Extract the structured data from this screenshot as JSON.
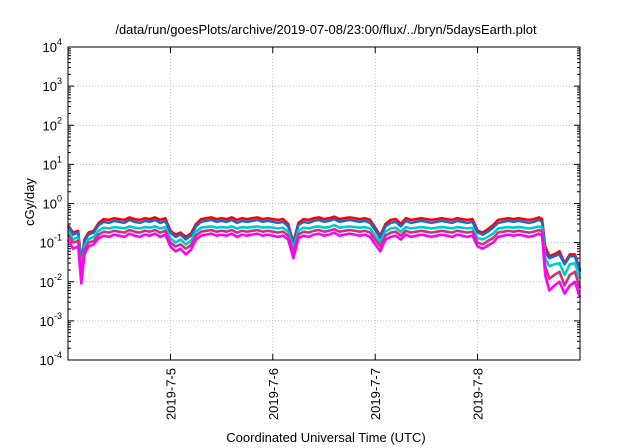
{
  "chart_data": {
    "type": "line",
    "title": "/data/run/goesPlots/archive/2019-07-08/23:00/flux/../bryn/5daysEarth.plot",
    "xlabel": "Coordinated Universal Time (UTC)",
    "ylabel": "cGy/day",
    "yscale": "log",
    "ylim": [
      0.0001,
      10000
    ],
    "xlim": [
      4.0,
      9.0
    ],
    "grid": true,
    "x_unit": "days of 2019-07 (fractional)",
    "x_ticks": [
      {
        "value": 5,
        "label": "2019-7-5"
      },
      {
        "value": 6,
        "label": "2019-7-6"
      },
      {
        "value": 7,
        "label": "2019-7-7"
      },
      {
        "value": 8,
        "label": "2019-7-8"
      }
    ],
    "y_ticks": [
      {
        "value": 0.0001,
        "base": "10",
        "exp": "-4"
      },
      {
        "value": 0.001,
        "base": "10",
        "exp": "-3"
      },
      {
        "value": 0.01,
        "base": "10",
        "exp": "-2"
      },
      {
        "value": 0.1,
        "base": "10",
        "exp": "-1"
      },
      {
        "value": 1,
        "base": "10",
        "exp": "0"
      },
      {
        "value": 10,
        "base": "10",
        "exp": "1"
      },
      {
        "value": 100,
        "base": "10",
        "exp": "2"
      },
      {
        "value": 1000,
        "base": "10",
        "exp": "3"
      },
      {
        "value": 10000,
        "base": "10",
        "exp": "4"
      }
    ],
    "x": [
      4.0,
      4.05,
      4.1,
      4.13,
      4.16,
      4.2,
      4.25,
      4.3,
      4.35,
      4.4,
      4.45,
      4.5,
      4.55,
      4.6,
      4.65,
      4.7,
      4.75,
      4.8,
      4.85,
      4.9,
      4.95,
      5.0,
      5.05,
      5.1,
      5.15,
      5.2,
      5.25,
      5.3,
      5.35,
      5.4,
      5.45,
      5.5,
      5.55,
      5.6,
      5.65,
      5.7,
      5.75,
      5.8,
      5.85,
      5.9,
      5.95,
      6.0,
      6.05,
      6.1,
      6.15,
      6.2,
      6.25,
      6.3,
      6.35,
      6.4,
      6.45,
      6.5,
      6.55,
      6.6,
      6.65,
      6.7,
      6.75,
      6.8,
      6.85,
      6.9,
      6.95,
      7.0,
      7.05,
      7.1,
      7.15,
      7.2,
      7.25,
      7.3,
      7.35,
      7.4,
      7.45,
      7.5,
      7.55,
      7.6,
      7.65,
      7.7,
      7.75,
      7.8,
      7.85,
      7.9,
      7.95,
      8.0,
      8.05,
      8.1,
      8.15,
      8.2,
      8.25,
      8.3,
      8.35,
      8.4,
      8.45,
      8.5,
      8.55,
      8.6,
      8.63,
      8.66,
      8.7,
      8.75,
      8.8,
      8.85,
      8.9,
      8.95,
      9.0
    ],
    "series": [
      {
        "color": "#ff0000",
        "values": [
          0.28,
          0.18,
          0.2,
          0.03,
          0.12,
          0.18,
          0.2,
          0.32,
          0.4,
          0.38,
          0.42,
          0.4,
          0.38,
          0.44,
          0.4,
          0.38,
          0.42,
          0.4,
          0.44,
          0.38,
          0.42,
          0.2,
          0.16,
          0.18,
          0.14,
          0.17,
          0.3,
          0.4,
          0.42,
          0.44,
          0.4,
          0.42,
          0.4,
          0.44,
          0.38,
          0.42,
          0.4,
          0.42,
          0.44,
          0.4,
          0.42,
          0.4,
          0.38,
          0.4,
          0.3,
          0.1,
          0.32,
          0.4,
          0.38,
          0.42,
          0.44,
          0.4,
          0.42,
          0.46,
          0.4,
          0.42,
          0.44,
          0.42,
          0.4,
          0.42,
          0.38,
          0.24,
          0.15,
          0.3,
          0.38,
          0.4,
          0.3,
          0.42,
          0.38,
          0.4,
          0.42,
          0.4,
          0.38,
          0.4,
          0.42,
          0.4,
          0.38,
          0.42,
          0.4,
          0.38,
          0.4,
          0.2,
          0.18,
          0.22,
          0.28,
          0.38,
          0.4,
          0.42,
          0.4,
          0.42,
          0.4,
          0.38,
          0.4,
          0.44,
          0.4,
          0.08,
          0.045,
          0.05,
          0.06,
          0.03,
          0.05,
          0.05,
          0.02
        ]
      },
      {
        "color": "#2266cc",
        "values": [
          0.26,
          0.16,
          0.18,
          0.03,
          0.11,
          0.16,
          0.18,
          0.28,
          0.34,
          0.32,
          0.36,
          0.34,
          0.32,
          0.38,
          0.34,
          0.32,
          0.36,
          0.34,
          0.38,
          0.32,
          0.36,
          0.18,
          0.14,
          0.16,
          0.12,
          0.15,
          0.26,
          0.34,
          0.36,
          0.38,
          0.34,
          0.36,
          0.34,
          0.38,
          0.32,
          0.36,
          0.34,
          0.36,
          0.38,
          0.34,
          0.36,
          0.34,
          0.32,
          0.34,
          0.26,
          0.09,
          0.28,
          0.34,
          0.32,
          0.36,
          0.38,
          0.34,
          0.36,
          0.4,
          0.34,
          0.36,
          0.38,
          0.36,
          0.34,
          0.36,
          0.32,
          0.21,
          0.13,
          0.26,
          0.32,
          0.34,
          0.26,
          0.36,
          0.32,
          0.34,
          0.36,
          0.34,
          0.32,
          0.34,
          0.36,
          0.34,
          0.32,
          0.36,
          0.34,
          0.32,
          0.34,
          0.18,
          0.16,
          0.19,
          0.24,
          0.32,
          0.34,
          0.36,
          0.34,
          0.36,
          0.34,
          0.32,
          0.34,
          0.38,
          0.34,
          0.06,
          0.04,
          0.045,
          0.05,
          0.028,
          0.045,
          0.045,
          0.018
        ]
      },
      {
        "color": "#00cccc",
        "values": [
          0.2,
          0.12,
          0.14,
          0.02,
          0.08,
          0.12,
          0.14,
          0.2,
          0.24,
          0.23,
          0.25,
          0.24,
          0.23,
          0.26,
          0.24,
          0.23,
          0.25,
          0.24,
          0.26,
          0.23,
          0.25,
          0.13,
          0.1,
          0.12,
          0.09,
          0.11,
          0.19,
          0.24,
          0.25,
          0.26,
          0.24,
          0.25,
          0.24,
          0.26,
          0.23,
          0.25,
          0.24,
          0.25,
          0.26,
          0.24,
          0.25,
          0.24,
          0.23,
          0.24,
          0.19,
          0.07,
          0.2,
          0.24,
          0.23,
          0.25,
          0.26,
          0.24,
          0.25,
          0.28,
          0.24,
          0.25,
          0.26,
          0.25,
          0.24,
          0.25,
          0.23,
          0.15,
          0.1,
          0.19,
          0.23,
          0.24,
          0.19,
          0.25,
          0.23,
          0.24,
          0.25,
          0.24,
          0.23,
          0.24,
          0.25,
          0.24,
          0.23,
          0.25,
          0.24,
          0.23,
          0.24,
          0.13,
          0.12,
          0.14,
          0.17,
          0.23,
          0.24,
          0.25,
          0.24,
          0.25,
          0.24,
          0.23,
          0.24,
          0.26,
          0.24,
          0.04,
          0.025,
          0.028,
          0.03,
          0.015,
          0.028,
          0.03,
          0.012
        ]
      },
      {
        "color": "#cc3377",
        "values": [
          0.16,
          0.1,
          0.11,
          0.015,
          0.065,
          0.1,
          0.11,
          0.16,
          0.19,
          0.18,
          0.2,
          0.19,
          0.18,
          0.21,
          0.19,
          0.18,
          0.2,
          0.19,
          0.21,
          0.18,
          0.2,
          0.1,
          0.08,
          0.09,
          0.07,
          0.085,
          0.15,
          0.19,
          0.2,
          0.21,
          0.19,
          0.2,
          0.19,
          0.21,
          0.18,
          0.2,
          0.19,
          0.2,
          0.21,
          0.19,
          0.2,
          0.19,
          0.18,
          0.19,
          0.15,
          0.055,
          0.16,
          0.19,
          0.18,
          0.2,
          0.21,
          0.19,
          0.2,
          0.22,
          0.19,
          0.2,
          0.21,
          0.2,
          0.19,
          0.2,
          0.18,
          0.12,
          0.08,
          0.15,
          0.18,
          0.19,
          0.15,
          0.2,
          0.18,
          0.19,
          0.2,
          0.19,
          0.18,
          0.19,
          0.2,
          0.19,
          0.18,
          0.2,
          0.19,
          0.18,
          0.19,
          0.1,
          0.09,
          0.11,
          0.13,
          0.18,
          0.19,
          0.2,
          0.19,
          0.2,
          0.19,
          0.18,
          0.19,
          0.21,
          0.19,
          0.025,
          0.012,
          0.015,
          0.018,
          0.008,
          0.015,
          0.018,
          0.007
        ]
      },
      {
        "color": "#ff00ff",
        "values": [
          0.12,
          0.07,
          0.08,
          0.009,
          0.05,
          0.08,
          0.09,
          0.13,
          0.15,
          0.14,
          0.16,
          0.15,
          0.14,
          0.17,
          0.15,
          0.14,
          0.16,
          0.15,
          0.17,
          0.14,
          0.16,
          0.08,
          0.06,
          0.07,
          0.05,
          0.065,
          0.12,
          0.15,
          0.16,
          0.17,
          0.15,
          0.16,
          0.15,
          0.17,
          0.14,
          0.16,
          0.15,
          0.16,
          0.17,
          0.15,
          0.16,
          0.15,
          0.14,
          0.15,
          0.12,
          0.04,
          0.13,
          0.15,
          0.14,
          0.16,
          0.17,
          0.15,
          0.16,
          0.18,
          0.15,
          0.16,
          0.17,
          0.16,
          0.15,
          0.16,
          0.14,
          0.09,
          0.06,
          0.12,
          0.14,
          0.15,
          0.12,
          0.16,
          0.14,
          0.15,
          0.16,
          0.15,
          0.14,
          0.15,
          0.16,
          0.15,
          0.14,
          0.16,
          0.15,
          0.14,
          0.15,
          0.08,
          0.07,
          0.085,
          0.1,
          0.14,
          0.15,
          0.16,
          0.15,
          0.16,
          0.15,
          0.14,
          0.15,
          0.17,
          0.15,
          0.015,
          0.006,
          0.008,
          0.01,
          0.005,
          0.008,
          0.01,
          0.004
        ]
      }
    ]
  }
}
